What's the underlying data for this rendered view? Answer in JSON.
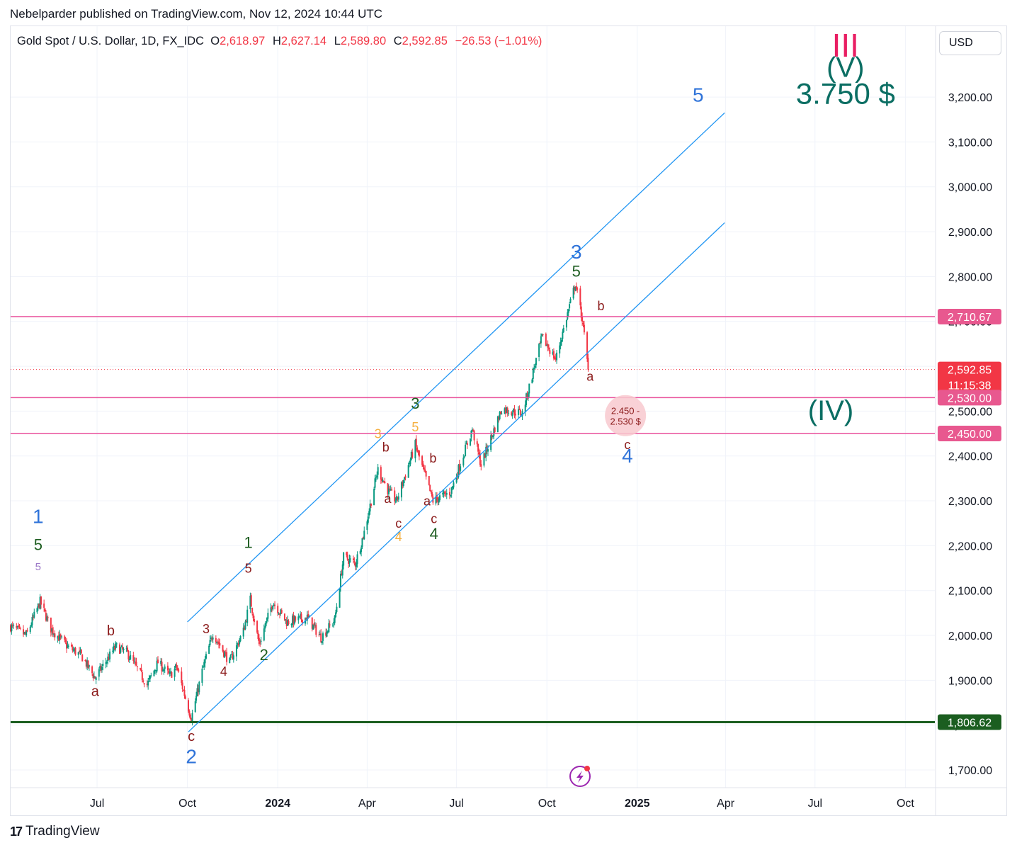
{
  "header": {
    "publisher": "Nebelparder published on TradingView.com, Nov 12, 2024 10:44 UTC"
  },
  "symbol": {
    "name": "Gold Spot / U.S. Dollar, 1D, FX_IDC",
    "o_label": "O",
    "o_value": "2,618.97",
    "h_label": "H",
    "h_value": "2,627.14",
    "l_label": "L",
    "l_value": "2,589.80",
    "c_label": "C",
    "c_value": "2,592.85",
    "change": "−26.53 (−1.01%)"
  },
  "currency_button": "USD",
  "footer": {
    "brand": "TradingView"
  },
  "colors": {
    "up": "#089981",
    "down": "#f23645",
    "channel": "#2196f3",
    "level_line": "#e94f9a",
    "level_tag": "#e8588f",
    "support": "#1b5e20",
    "wave_blue": "#2f73d9",
    "wave_green": "#1f5e22",
    "wave_red": "#8b1a1a",
    "wave_orange": "#f5b041",
    "target_text": "#0b6e63",
    "wave_pink": "#e91e63"
  },
  "chart_data": {
    "type": "candlestick",
    "title": "Gold Spot / U.S. Dollar, 1D, FX_IDC",
    "ylim": [
      1650,
      3320
    ],
    "y_ticks": [
      "1,700.00",
      "1,800.00",
      "1,900.00",
      "2,000.00",
      "2,100.00",
      "2,200.00",
      "2,300.00",
      "2,400.00",
      "2,500.00",
      "2,600.00",
      "2,700.00",
      "2,800.00",
      "2,900.00",
      "3,000.00",
      "3,100.00",
      "3,200.00"
    ],
    "x_range": [
      "2023-04-04",
      "2025-10-31"
    ],
    "x_ticks": [
      {
        "date": "2023-07-01",
        "label": "Jul",
        "bold": false
      },
      {
        "date": "2023-10-01",
        "label": "Oct",
        "bold": false
      },
      {
        "date": "2024-01-01",
        "label": "2024",
        "bold": true
      },
      {
        "date": "2024-04-01",
        "label": "Apr",
        "bold": false
      },
      {
        "date": "2024-07-01",
        "label": "Jul",
        "bold": false
      },
      {
        "date": "2024-10-01",
        "label": "Oct",
        "bold": false
      },
      {
        "date": "2025-01-01",
        "label": "2025",
        "bold": true
      },
      {
        "date": "2025-04-01",
        "label": "Apr",
        "bold": false
      },
      {
        "date": "2025-07-01",
        "label": "Jul",
        "bold": false
      },
      {
        "date": "2025-10-01",
        "label": "Oct",
        "bold": false
      }
    ],
    "price_path": [
      [
        "2023-04-04",
        2020
      ],
      [
        "2023-04-20",
        2000
      ],
      [
        "2023-05-04",
        2075
      ],
      [
        "2023-05-15",
        2015
      ],
      [
        "2023-06-01",
        1975
      ],
      [
        "2023-06-15",
        1955
      ],
      [
        "2023-06-29",
        1905
      ],
      [
        "2023-07-20",
        1975
      ],
      [
        "2023-08-01",
        1960
      ],
      [
        "2023-08-21",
        1890
      ],
      [
        "2023-09-01",
        1940
      ],
      [
        "2023-09-13",
        1910
      ],
      [
        "2023-09-20",
        1930
      ],
      [
        "2023-10-05",
        1815
      ],
      [
        "2023-10-16",
        1920
      ],
      [
        "2023-10-27",
        2005
      ],
      [
        "2023-11-13",
        1940
      ],
      [
        "2023-11-27",
        2010
      ],
      [
        "2023-12-04",
        2080
      ],
      [
        "2023-12-13",
        1980
      ],
      [
        "2023-12-27",
        2075
      ],
      [
        "2024-01-10",
        2030
      ],
      [
        "2024-01-31",
        2040
      ],
      [
        "2024-02-14",
        1995
      ],
      [
        "2024-02-28",
        2035
      ],
      [
        "2024-03-08",
        2175
      ],
      [
        "2024-03-20",
        2160
      ],
      [
        "2024-03-29",
        2230
      ],
      [
        "2024-04-12",
        2370
      ],
      [
        "2024-04-23",
        2320
      ],
      [
        "2024-05-01",
        2300
      ],
      [
        "2024-05-20",
        2425
      ],
      [
        "2024-06-07",
        2300
      ],
      [
        "2024-06-25",
        2320
      ],
      [
        "2024-07-17",
        2460
      ],
      [
        "2024-07-26",
        2380
      ],
      [
        "2024-08-16",
        2505
      ],
      [
        "2024-09-06",
        2495
      ],
      [
        "2024-09-26",
        2665
      ],
      [
        "2024-10-10",
        2615
      ],
      [
        "2024-10-30",
        2785
      ],
      [
        "2024-11-06",
        2705
      ],
      [
        "2024-11-12",
        2593
      ]
    ],
    "last": {
      "open": "2,618.97",
      "high": "2,627.14",
      "low": "2,589.80",
      "close": "2,592.85",
      "change": "−26.53",
      "change_pct": "(−1.01%)"
    },
    "price_tags": [
      {
        "label": "2,710.67",
        "value": 2710.67,
        "kind": "level"
      },
      {
        "label": "2,592.85",
        "value": 2592.85,
        "kind": "last",
        "countdown": "11:15:38"
      },
      {
        "label": "2,530.00",
        "value": 2530.0,
        "kind": "level"
      },
      {
        "label": "2,450.00",
        "value": 2450.0,
        "kind": "level"
      },
      {
        "label": "1,806.62",
        "value": 1806.62,
        "kind": "support"
      }
    ],
    "channel": {
      "upper": [
        [
          "2023-10-01",
          2030
        ],
        [
          "2025-03-31",
          3165
        ]
      ],
      "lower": [
        [
          "2023-10-02",
          1785
        ],
        [
          "2025-03-31",
          2920
        ]
      ]
    },
    "target_zone": {
      "date": "2024-12-20",
      "value": 2490,
      "text_line1": "2.450 -",
      "text_line2": "2.530 $"
    },
    "wave_labels": [
      {
        "t": "1",
        "date": "2023-05-02",
        "value": 2250,
        "color": "wave_blue",
        "size": 28
      },
      {
        "t": "5",
        "date": "2023-05-02",
        "value": 2190,
        "color": "wave_green",
        "size": 22
      },
      {
        "t": "5",
        "date": "2023-05-02",
        "value": 2145,
        "color": "#9c7ac8",
        "size": 15
      },
      {
        "t": "b",
        "date": "2023-07-15",
        "value": 2000,
        "color": "wave_red",
        "size": 20
      },
      {
        "t": "a",
        "date": "2023-06-29",
        "value": 1865,
        "color": "wave_red",
        "size": 20
      },
      {
        "t": "c",
        "date": "2023-10-05",
        "value": 1765,
        "color": "wave_red",
        "size": 20
      },
      {
        "t": "2",
        "date": "2023-10-05",
        "value": 1715,
        "color": "wave_blue",
        "size": 28
      },
      {
        "t": "3",
        "date": "2023-10-20",
        "value": 2005,
        "color": "wave_red",
        "size": 18
      },
      {
        "t": "4",
        "date": "2023-11-07",
        "value": 1910,
        "color": "wave_red",
        "size": 18
      },
      {
        "t": "1",
        "date": "2023-12-02",
        "value": 2195,
        "color": "wave_green",
        "size": 22
      },
      {
        "t": "5",
        "date": "2023-12-02",
        "value": 2140,
        "color": "wave_red",
        "size": 18
      },
      {
        "t": "2",
        "date": "2023-12-18",
        "value": 1945,
        "color": "wave_green",
        "size": 22
      },
      {
        "t": "3",
        "date": "2024-04-12",
        "value": 2440,
        "color": "wave_orange",
        "size": 18
      },
      {
        "t": "b",
        "date": "2024-04-20",
        "value": 2410,
        "color": "wave_red",
        "size": 18
      },
      {
        "t": "a",
        "date": "2024-04-22",
        "value": 2295,
        "color": "wave_red",
        "size": 18
      },
      {
        "t": "c",
        "date": "2024-05-03",
        "value": 2240,
        "color": "wave_red",
        "size": 18
      },
      {
        "t": "4",
        "date": "2024-05-03",
        "value": 2210,
        "color": "wave_orange",
        "size": 18
      },
      {
        "t": "3",
        "date": "2024-05-20",
        "value": 2505,
        "color": "wave_green",
        "size": 22
      },
      {
        "t": "5",
        "date": "2024-05-20",
        "value": 2455,
        "color": "wave_orange",
        "size": 18
      },
      {
        "t": "b",
        "date": "2024-06-07",
        "value": 2385,
        "color": "wave_red",
        "size": 18
      },
      {
        "t": "a",
        "date": "2024-06-01",
        "value": 2290,
        "color": "wave_red",
        "size": 18
      },
      {
        "t": "c",
        "date": "2024-06-08",
        "value": 2250,
        "color": "wave_red",
        "size": 18
      },
      {
        "t": "4",
        "date": "2024-06-08",
        "value": 2215,
        "color": "wave_green",
        "size": 22
      },
      {
        "t": "3",
        "date": "2024-10-31",
        "value": 2840,
        "color": "wave_blue",
        "size": 28
      },
      {
        "t": "5",
        "date": "2024-10-31",
        "value": 2800,
        "color": "wave_green",
        "size": 22
      },
      {
        "t": "b",
        "date": "2024-11-25",
        "value": 2725,
        "color": "wave_red",
        "size": 18
      },
      {
        "t": "a",
        "date": "2024-11-14",
        "value": 2568,
        "color": "wave_red",
        "size": 18
      },
      {
        "t": "c",
        "date": "2024-12-22",
        "value": 2415,
        "color": "wave_red",
        "size": 18
      },
      {
        "t": "4",
        "date": "2024-12-22",
        "value": 2385,
        "color": "wave_blue",
        "size": 28
      },
      {
        "t": "5",
        "date": "2025-03-04",
        "value": 3190,
        "color": "wave_blue",
        "size": 28
      },
      {
        "t": "(IV)",
        "date": "2025-07-17",
        "value": 2480,
        "color": "target_text",
        "size": 40
      },
      {
        "t": "III",
        "date": "2025-08-01",
        "value": 3290,
        "color": "wave_pink",
        "size": 46
      },
      {
        "t": "(V)",
        "date": "2025-08-01",
        "value": 3245,
        "color": "target_text",
        "size": 40
      },
      {
        "t": "3.750 $",
        "date": "2025-08-01",
        "value": 3185,
        "color": "target_text",
        "size": 42
      }
    ]
  }
}
